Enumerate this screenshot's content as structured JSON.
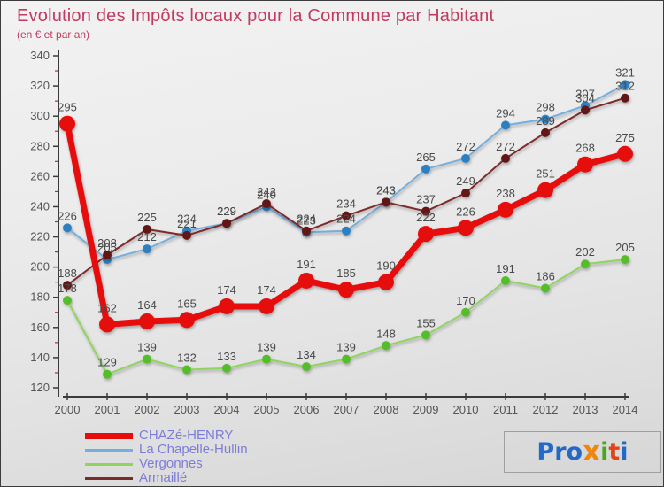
{
  "title": "Evolution des Impôts locaux pour la Commune par Habitant",
  "subtitle": "(en € et par an)",
  "colors": {
    "title": "#c23a5f",
    "axis": "#3a3a3a",
    "tick_label": "#555555",
    "minor_tick": "#cc2222",
    "value_label": "#4a4a4a",
    "legend_text": "#7d7dd8"
  },
  "chart_data": {
    "type": "line",
    "title": "Evolution des Impôts locaux pour la Commune par Habitant",
    "subtitle": "(en € et par an)",
    "x": [
      2000,
      2001,
      2002,
      2003,
      2004,
      2005,
      2006,
      2007,
      2008,
      2009,
      2010,
      2011,
      2012,
      2013,
      2014
    ],
    "ylim": [
      120,
      340
    ],
    "ytick_step": 20,
    "grid": false,
    "legend_position": "bottom-left",
    "series": [
      {
        "name": "CHAZé-HENRY",
        "color": "#e80c0c",
        "point_color": "#e60b0b",
        "line_width": 7,
        "point_radius": 9,
        "values": [
          295,
          162,
          164,
          165,
          174,
          174,
          191,
          185,
          190,
          222,
          226,
          238,
          251,
          268,
          275
        ]
      },
      {
        "name": "La Chapelle-Hullin",
        "color": "#74aede",
        "point_color": "#2f7fc0",
        "line_width": 2,
        "point_radius": 5,
        "values": [
          226,
          205,
          212,
          224,
          229,
          240,
          223,
          224,
          243,
          265,
          272,
          294,
          298,
          307,
          321
        ]
      },
      {
        "name": "Vergonnes",
        "color": "#8ed45e",
        "point_color": "#55bd2b",
        "line_width": 2,
        "point_radius": 5,
        "values": [
          178,
          129,
          139,
          132,
          133,
          139,
          134,
          139,
          148,
          155,
          170,
          191,
          186,
          202,
          205
        ]
      },
      {
        "name": "Armaillé",
        "color": "#7d2a2a",
        "point_color": "#621414",
        "line_width": 2,
        "point_radius": 5,
        "values": [
          188,
          208,
          225,
          221,
          229,
          242,
          224,
          234,
          243,
          237,
          249,
          272,
          289,
          304,
          312
        ]
      }
    ]
  },
  "logo": {
    "text": "Proxiti",
    "letter_colors": [
      "#2468c8",
      "#2468c8",
      "#2468c8",
      "#f0860c",
      "#49a71c",
      "#e04414",
      "#2468c8"
    ]
  }
}
